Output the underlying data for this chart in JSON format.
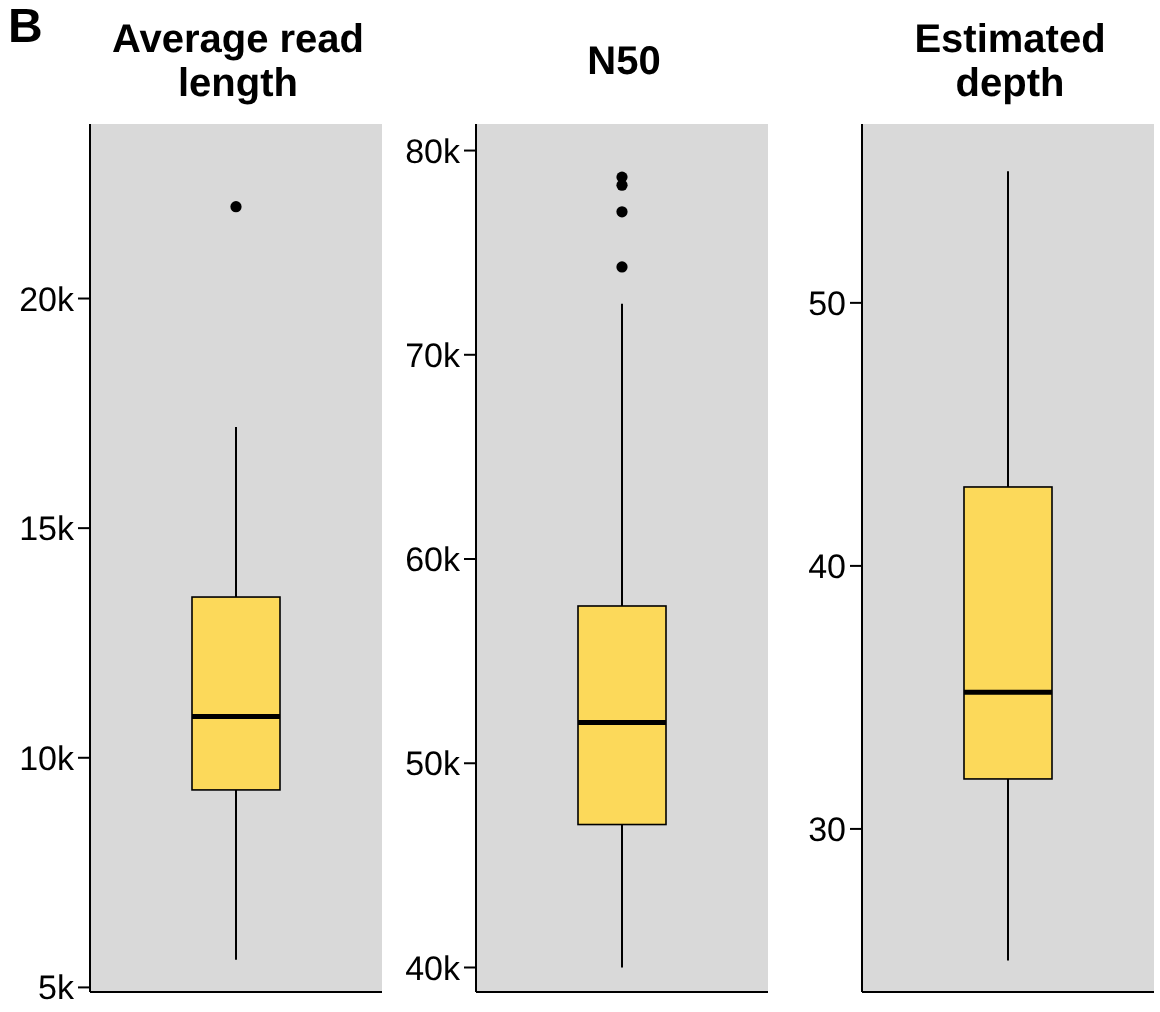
{
  "chart_data": [
    {
      "type": "box",
      "title": "Average read length",
      "annotations": [
        "B"
      ],
      "categories": [
        null
      ],
      "tick_labels": "y",
      "color": "#fcd95a",
      "ylim": [
        4900,
        23800
      ],
      "yticks": [
        {
          "value": 5000,
          "label": "5k"
        },
        {
          "value": 10000,
          "label": "10k"
        },
        {
          "value": 15000,
          "label": "15k"
        },
        {
          "value": 20000,
          "label": "20k"
        }
      ],
      "boxes": [
        {
          "low": 5600,
          "q1": 9300,
          "median": 10900,
          "q3": 13500,
          "high": 17200,
          "outliers": [
            22000
          ]
        }
      ]
    },
    {
      "type": "box",
      "title": "N50",
      "categories": [
        null
      ],
      "tick_labels": "y",
      "color": "#fcd95a",
      "ylim": [
        38800,
        81300
      ],
      "yticks": [
        {
          "value": 40000,
          "label": "40k"
        },
        {
          "value": 50000,
          "label": "50k"
        },
        {
          "value": 60000,
          "label": "60k"
        },
        {
          "value": 70000,
          "label": "70k"
        },
        {
          "value": 80000,
          "label": "80k"
        }
      ],
      "boxes": [
        {
          "low": 40000,
          "q1": 47000,
          "median": 52000,
          "q3": 57700,
          "high": 72500,
          "outliers": [
            74300,
            77000,
            78300,
            78700
          ]
        }
      ]
    },
    {
      "type": "box",
      "title": "Estimated depth",
      "categories": [
        null
      ],
      "tick_labels": "y",
      "color": "#fcd95a",
      "ylim": [
        23.8,
        56.8
      ],
      "yticks": [
        30,
        40,
        50
      ],
      "boxes": [
        {
          "low": 25,
          "q1": 31.9,
          "median": 35.2,
          "q3": 43,
          "high": 55
        }
      ]
    }
  ]
}
